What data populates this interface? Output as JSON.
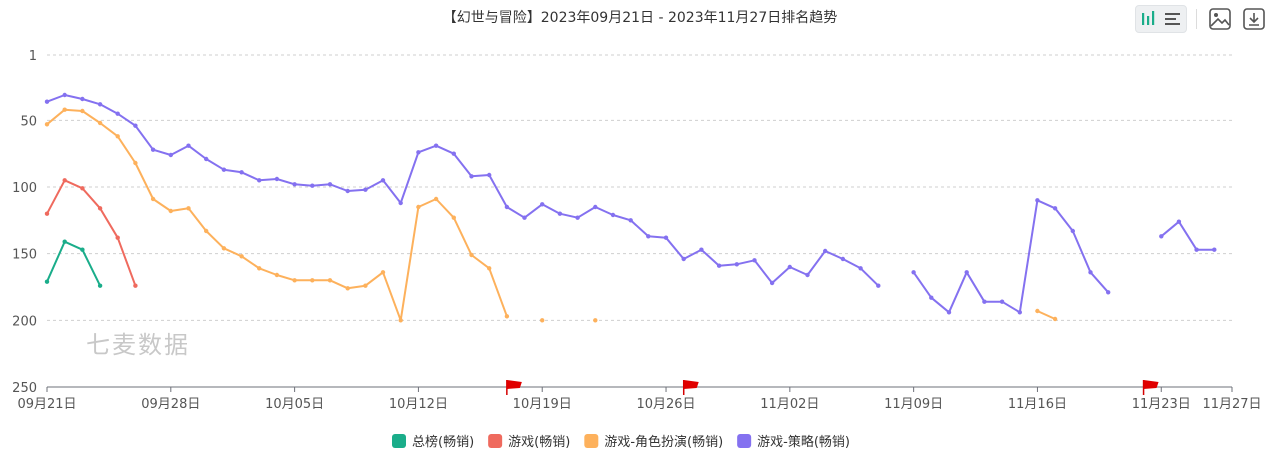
{
  "toolbar": {
    "toggle_icons": [
      "bar-chart-icon",
      "list-icon"
    ],
    "image_icon": "image-icon",
    "download_icon": "download-icon"
  },
  "watermark": "七麦数据",
  "chart_data": {
    "type": "line",
    "title": "【幻世与冒险】2023年09月21日 - 2023年11月27日排名趋势",
    "x_tick_labels": [
      "09月21日",
      "09月28日",
      "10月05日",
      "10月12日",
      "10月19日",
      "10月26日",
      "11月02日",
      "11月09日",
      "11月16日",
      "11月23日",
      "11月27日"
    ],
    "y_tick_labels": [
      "1",
      "50",
      "100",
      "150",
      "200",
      "250"
    ],
    "y_range": [
      1,
      250
    ],
    "y_inverted": true,
    "x_range": [
      "2023-09-21",
      "2023-11-27"
    ],
    "grid": true,
    "legend_position": "bottom",
    "flags": [
      "2023-10-17",
      "2023-10-27",
      "2023-11-22"
    ],
    "series": [
      {
        "name": "总榜(畅销)",
        "color": "#1aad8a",
        "points": [
          [
            "2023-09-21",
            171
          ],
          [
            "2023-09-22",
            141
          ],
          [
            "2023-09-23",
            147
          ],
          [
            "2023-09-24",
            174
          ]
        ]
      },
      {
        "name": "游戏(畅销)",
        "color": "#ef6a5e",
        "points": [
          [
            "2023-09-21",
            120
          ],
          [
            "2023-09-22",
            95
          ],
          [
            "2023-09-23",
            101
          ],
          [
            "2023-09-24",
            116
          ],
          [
            "2023-09-25",
            138
          ],
          [
            "2023-09-26",
            174
          ]
        ]
      },
      {
        "name": "游戏-角色扮演(畅销)",
        "color": "#fdb15c",
        "points": [
          [
            "2023-09-21",
            53
          ],
          [
            "2023-09-22",
            42
          ],
          [
            "2023-09-23",
            43
          ],
          [
            "2023-09-24",
            52
          ],
          [
            "2023-09-25",
            62
          ],
          [
            "2023-09-26",
            82
          ],
          [
            "2023-09-27",
            109
          ],
          [
            "2023-09-28",
            118
          ],
          [
            "2023-09-29",
            116
          ],
          [
            "2023-09-30",
            133
          ],
          [
            "2023-10-01",
            146
          ],
          [
            "2023-10-02",
            152
          ],
          [
            "2023-10-03",
            161
          ],
          [
            "2023-10-04",
            166
          ],
          [
            "2023-10-05",
            170
          ],
          [
            "2023-10-06",
            170
          ],
          [
            "2023-10-07",
            170
          ],
          [
            "2023-10-08",
            176
          ],
          [
            "2023-10-09",
            174
          ],
          [
            "2023-10-10",
            164
          ],
          [
            "2023-10-11",
            200
          ],
          [
            "2023-10-12",
            115
          ],
          [
            "2023-10-13",
            109
          ],
          [
            "2023-10-14",
            123
          ],
          [
            "2023-10-15",
            151
          ],
          [
            "2023-10-16",
            161
          ],
          [
            "2023-10-17",
            197
          ],
          null,
          [
            "2023-10-19",
            200
          ],
          null,
          null,
          [
            "2023-10-22",
            200
          ],
          null,
          [
            "2023-11-16",
            193
          ],
          [
            "2023-11-17",
            199
          ]
        ]
      },
      {
        "name": "游戏-策略(畅销)",
        "color": "#8471f0",
        "points": [
          [
            "2023-09-21",
            36
          ],
          [
            "2023-09-22",
            31
          ],
          [
            "2023-09-23",
            34
          ],
          [
            "2023-09-24",
            38
          ],
          [
            "2023-09-25",
            45
          ],
          [
            "2023-09-26",
            54
          ],
          [
            "2023-09-27",
            72
          ],
          [
            "2023-09-28",
            76
          ],
          [
            "2023-09-29",
            69
          ],
          [
            "2023-09-30",
            79
          ],
          [
            "2023-10-01",
            87
          ],
          [
            "2023-10-02",
            89
          ],
          [
            "2023-10-03",
            95
          ],
          [
            "2023-10-04",
            94
          ],
          [
            "2023-10-05",
            98
          ],
          [
            "2023-10-06",
            99
          ],
          [
            "2023-10-07",
            98
          ],
          [
            "2023-10-08",
            103
          ],
          [
            "2023-10-09",
            102
          ],
          [
            "2023-10-10",
            95
          ],
          [
            "2023-10-11",
            112
          ],
          [
            "2023-10-12",
            74
          ],
          [
            "2023-10-13",
            69
          ],
          [
            "2023-10-14",
            75
          ],
          [
            "2023-10-15",
            92
          ],
          [
            "2023-10-16",
            91
          ],
          [
            "2023-10-17",
            115
          ],
          [
            "2023-10-18",
            123
          ],
          [
            "2023-10-19",
            113
          ],
          [
            "2023-10-20",
            120
          ],
          [
            "2023-10-21",
            123
          ],
          [
            "2023-10-22",
            115
          ],
          [
            "2023-10-23",
            121
          ],
          [
            "2023-10-24",
            125
          ],
          [
            "2023-10-25",
            137
          ],
          [
            "2023-10-26",
            138
          ],
          [
            "2023-10-27",
            154
          ],
          [
            "2023-10-28",
            147
          ],
          [
            "2023-10-29",
            159
          ],
          [
            "2023-10-30",
            158
          ],
          [
            "2023-10-31",
            155
          ],
          [
            "2023-11-01",
            172
          ],
          [
            "2023-11-02",
            160
          ],
          [
            "2023-11-03",
            166
          ],
          [
            "2023-11-04",
            148
          ],
          [
            "2023-11-05",
            154
          ],
          [
            "2023-11-06",
            161
          ],
          [
            "2023-11-07",
            174
          ],
          null,
          [
            "2023-11-09",
            164
          ],
          [
            "2023-11-10",
            183
          ],
          [
            "2023-11-11",
            194
          ],
          [
            "2023-11-12",
            164
          ],
          [
            "2023-11-13",
            186
          ],
          [
            "2023-11-14",
            186
          ],
          [
            "2023-11-15",
            194
          ],
          [
            "2023-11-16",
            110
          ],
          [
            "2023-11-17",
            116
          ],
          [
            "2023-11-18",
            133
          ],
          [
            "2023-11-19",
            164
          ],
          [
            "2023-11-20",
            179
          ],
          null,
          null,
          [
            "2023-11-23",
            137
          ],
          [
            "2023-11-24",
            126
          ],
          [
            "2023-11-25",
            147
          ],
          [
            "2023-11-26",
            147
          ]
        ]
      }
    ]
  }
}
